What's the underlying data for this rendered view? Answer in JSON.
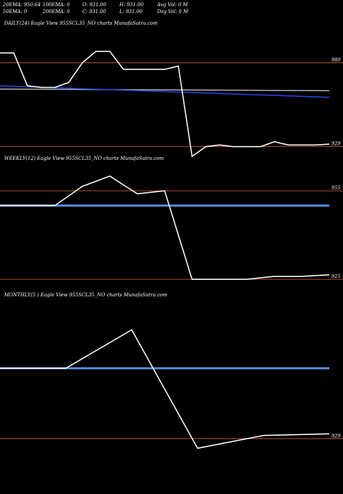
{
  "stats": {
    "row1": [
      "20EMA: 950.64",
      "100EMA: 0",
      "O: 931.00",
      "H: 931.00",
      "Avg Vol: 0  M"
    ],
    "row2": [
      "50EMA: 0",
      "200EMA: 0",
      "C: 931.00",
      "L: 931.00",
      "Day Vol: 0  M"
    ]
  },
  "chart_data": [
    {
      "type": "line",
      "title": "DAILY(24) Eagle  View  955SCL35_NO charts MunafaSutra.com",
      "ylim": [
        918,
        994
      ],
      "series": [
        {
          "color": "#ffffff",
          "x": [
            0,
            1,
            2,
            3,
            4,
            5,
            6,
            7,
            8,
            9,
            10,
            11,
            12,
            13,
            14,
            15,
            16,
            17,
            18,
            19,
            20,
            21,
            22,
            23,
            24
          ],
          "values": [
            986,
            986,
            966,
            965,
            965,
            968,
            980,
            987,
            987,
            976,
            976,
            976,
            976,
            978,
            923,
            929,
            930,
            929,
            929,
            929,
            932,
            930,
            930,
            930,
            930.5
          ]
        },
        {
          "color": "#2244dd",
          "x": [
            0,
            24
          ],
          "values": [
            966,
            959
          ]
        },
        {
          "color": "#aaaaaa",
          "x": [
            0,
            24
          ],
          "values": [
            964,
            963
          ]
        }
      ],
      "levels": [
        {
          "value": 980,
          "label": "980"
        },
        {
          "value": 929,
          "label": "929"
        }
      ]
    },
    {
      "type": "line",
      "title": "WEEKLY(12) Eagle  View  955SCL35_NO charts MunafaSutra.com",
      "ylim": [
        922,
        962
      ],
      "series": [
        {
          "color": "#ffffff",
          "x": [
            0,
            1,
            2,
            3,
            4,
            5,
            6,
            7,
            8,
            9,
            10,
            11,
            12
          ],
          "values": [
            950,
            950,
            950,
            956.5,
            960,
            954,
            955,
            925,
            925,
            925,
            926,
            926,
            926.5
          ]
        },
        {
          "color": "#5b8fdc",
          "x": [
            0,
            12
          ],
          "values": [
            950,
            950
          ]
        }
      ],
      "levels": [
        {
          "value": 955,
          "label": "955"
        },
        {
          "value": 925,
          "label": "925"
        }
      ]
    },
    {
      "type": "line",
      "title": "MONTHLY(5                         ) Eagle  View  955SCL35_NO charts MunafaSutra.com",
      "ylim": [
        916,
        970
      ],
      "series": [
        {
          "color": "#ffffff",
          "x": [
            0,
            1,
            2,
            3,
            4,
            5
          ],
          "values": [
            951,
            951,
            963,
            926,
            930,
            930.5
          ]
        },
        {
          "color": "#5b8fdc",
          "x": [
            0,
            5
          ],
          "values": [
            951,
            951
          ]
        }
      ],
      "levels": [
        {
          "value": 929,
          "label": "929"
        }
      ]
    }
  ]
}
